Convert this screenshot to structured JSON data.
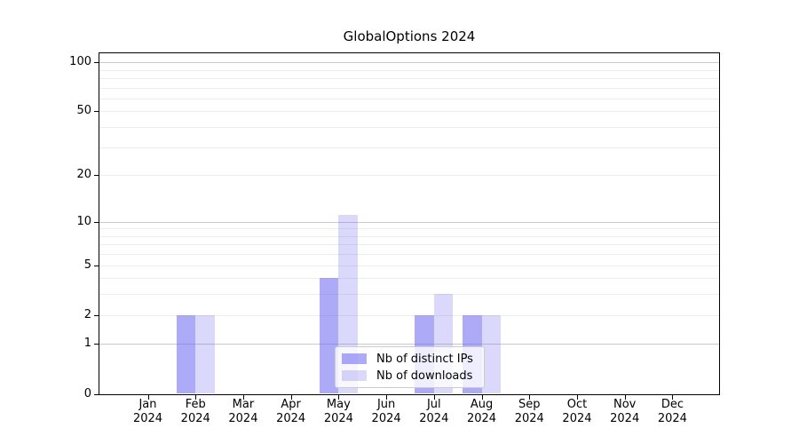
{
  "title": "GlobalOptions 2024",
  "chart_data": {
    "type": "bar",
    "title": "GlobalOptions 2024",
    "x_axis": {
      "categories": [
        "Jan",
        "Feb",
        "Mar",
        "Apr",
        "May",
        "Jun",
        "Jul",
        "Aug",
        "Sep",
        "Oct",
        "Nov",
        "Dec"
      ],
      "year_line": "2024"
    },
    "y_axis": {
      "scale": "log1p",
      "tick_labels": [
        0,
        1,
        2,
        5,
        10,
        20,
        50,
        100
      ],
      "major_gridlines": [
        1,
        10,
        100
      ],
      "minor_gridlines": [
        2,
        3,
        4,
        5,
        6,
        7,
        8,
        9,
        20,
        30,
        40,
        50,
        60,
        70,
        80,
        90
      ],
      "range": [
        0,
        113
      ]
    },
    "series": [
      {
        "name": "Nb of distinct IPs",
        "color": "rgba(106,100,240,0.55)",
        "values": [
          0,
          2,
          0,
          0,
          4,
          0,
          2,
          2,
          0,
          0,
          0,
          0
        ]
      },
      {
        "name": "Nb of downloads",
        "color": "rgba(106,100,240,0.25)",
        "values": [
          0,
          2,
          0,
          0,
          11,
          0,
          3,
          2,
          0,
          0,
          0,
          0
        ]
      }
    ],
    "legend": {
      "position": "lower center",
      "items": [
        "Nb of distinct IPs",
        "Nb of downloads"
      ]
    }
  },
  "colors": {
    "bar_base": "#6a64f0",
    "grid_minor": "#ececec",
    "grid_major": "#c9c9c9",
    "spine": "#000000",
    "background": "#ffffff",
    "legend_border": "#cccccc"
  }
}
